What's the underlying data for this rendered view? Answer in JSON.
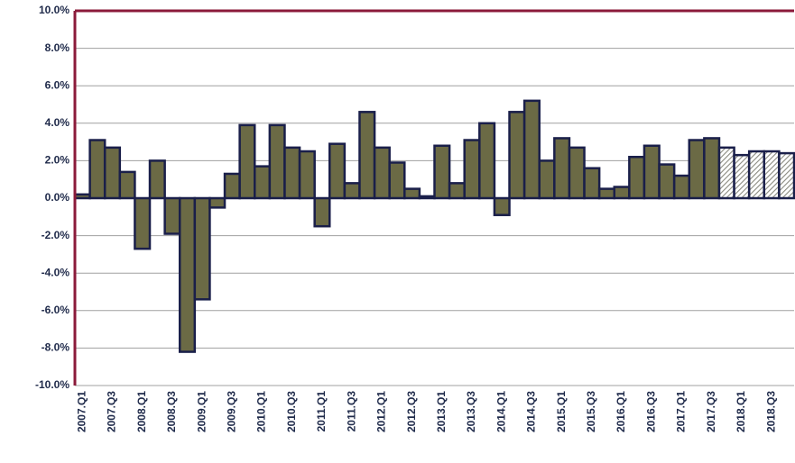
{
  "chart_data": {
    "type": "bar",
    "categories": [
      "2007.Q1",
      null,
      "2007.Q3",
      null,
      "2008.Q1",
      null,
      "2008.Q3",
      null,
      "2009.Q1",
      null,
      "2009.Q3",
      null,
      "2010.Q1",
      null,
      "2010.Q3",
      null,
      "2011.Q1",
      null,
      "2011.Q3",
      null,
      "2012.Q1",
      null,
      "2012.Q3",
      null,
      "2013.Q1",
      null,
      "2013.Q3",
      null,
      "2014.Q1",
      null,
      "2014.Q3",
      null,
      "2015.Q1",
      null,
      "2015.Q3",
      null,
      "2016.Q1",
      null,
      "2016.Q3",
      null,
      "2017.Q1",
      null,
      "2017.Q3",
      null,
      "2018.Q1",
      null,
      "2018.Q3",
      null
    ],
    "series": [
      {
        "color": "#6b6a45",
        "values": [
          0.2,
          3.1,
          2.7,
          1.4,
          -2.7,
          2.0,
          -1.9,
          -8.2,
          -5.4,
          -0.5,
          1.3,
          3.9,
          1.7,
          3.9,
          2.7,
          2.5,
          -1.5,
          2.9,
          0.8,
          4.6,
          2.7,
          1.9,
          0.5,
          0.1,
          2.8,
          0.8,
          3.1,
          4.0,
          -0.9,
          4.6,
          5.2,
          2.0,
          3.2,
          2.7,
          1.6,
          0.5,
          0.6,
          2.2,
          2.8,
          1.8,
          1.2,
          3.1,
          3.2,
          null,
          null,
          null,
          null,
          null
        ]
      },
      {
        "color": "#b0b0a8",
        "pattern": "hatch",
        "values": [
          null,
          null,
          null,
          null,
          null,
          null,
          null,
          null,
          null,
          null,
          null,
          null,
          null,
          null,
          null,
          null,
          null,
          null,
          null,
          null,
          null,
          null,
          null,
          null,
          null,
          null,
          null,
          null,
          null,
          null,
          null,
          null,
          null,
          null,
          null,
          null,
          null,
          null,
          null,
          null,
          null,
          null,
          null,
          2.7,
          2.3,
          2.5,
          2.5,
          2.4
        ]
      }
    ],
    "ylim": [
      -10,
      10
    ],
    "yticks": [
      {
        "value": -10,
        "label": "-10.0%"
      },
      {
        "value": -8,
        "label": "-8.0%"
      },
      {
        "value": -6,
        "label": "-6.0%"
      },
      {
        "value": -4,
        "label": "-4.0%"
      },
      {
        "value": -2,
        "label": "-2.0%"
      },
      {
        "value": 0,
        "label": "0.0%"
      },
      {
        "value": 2,
        "label": "2.0%"
      },
      {
        "value": 4,
        "label": "4.0%"
      },
      {
        "value": 6,
        "label": "6.0%"
      },
      {
        "value": 8,
        "label": "8.0%"
      },
      {
        "value": 10,
        "label": "10.0%"
      }
    ],
    "grid": true
  }
}
